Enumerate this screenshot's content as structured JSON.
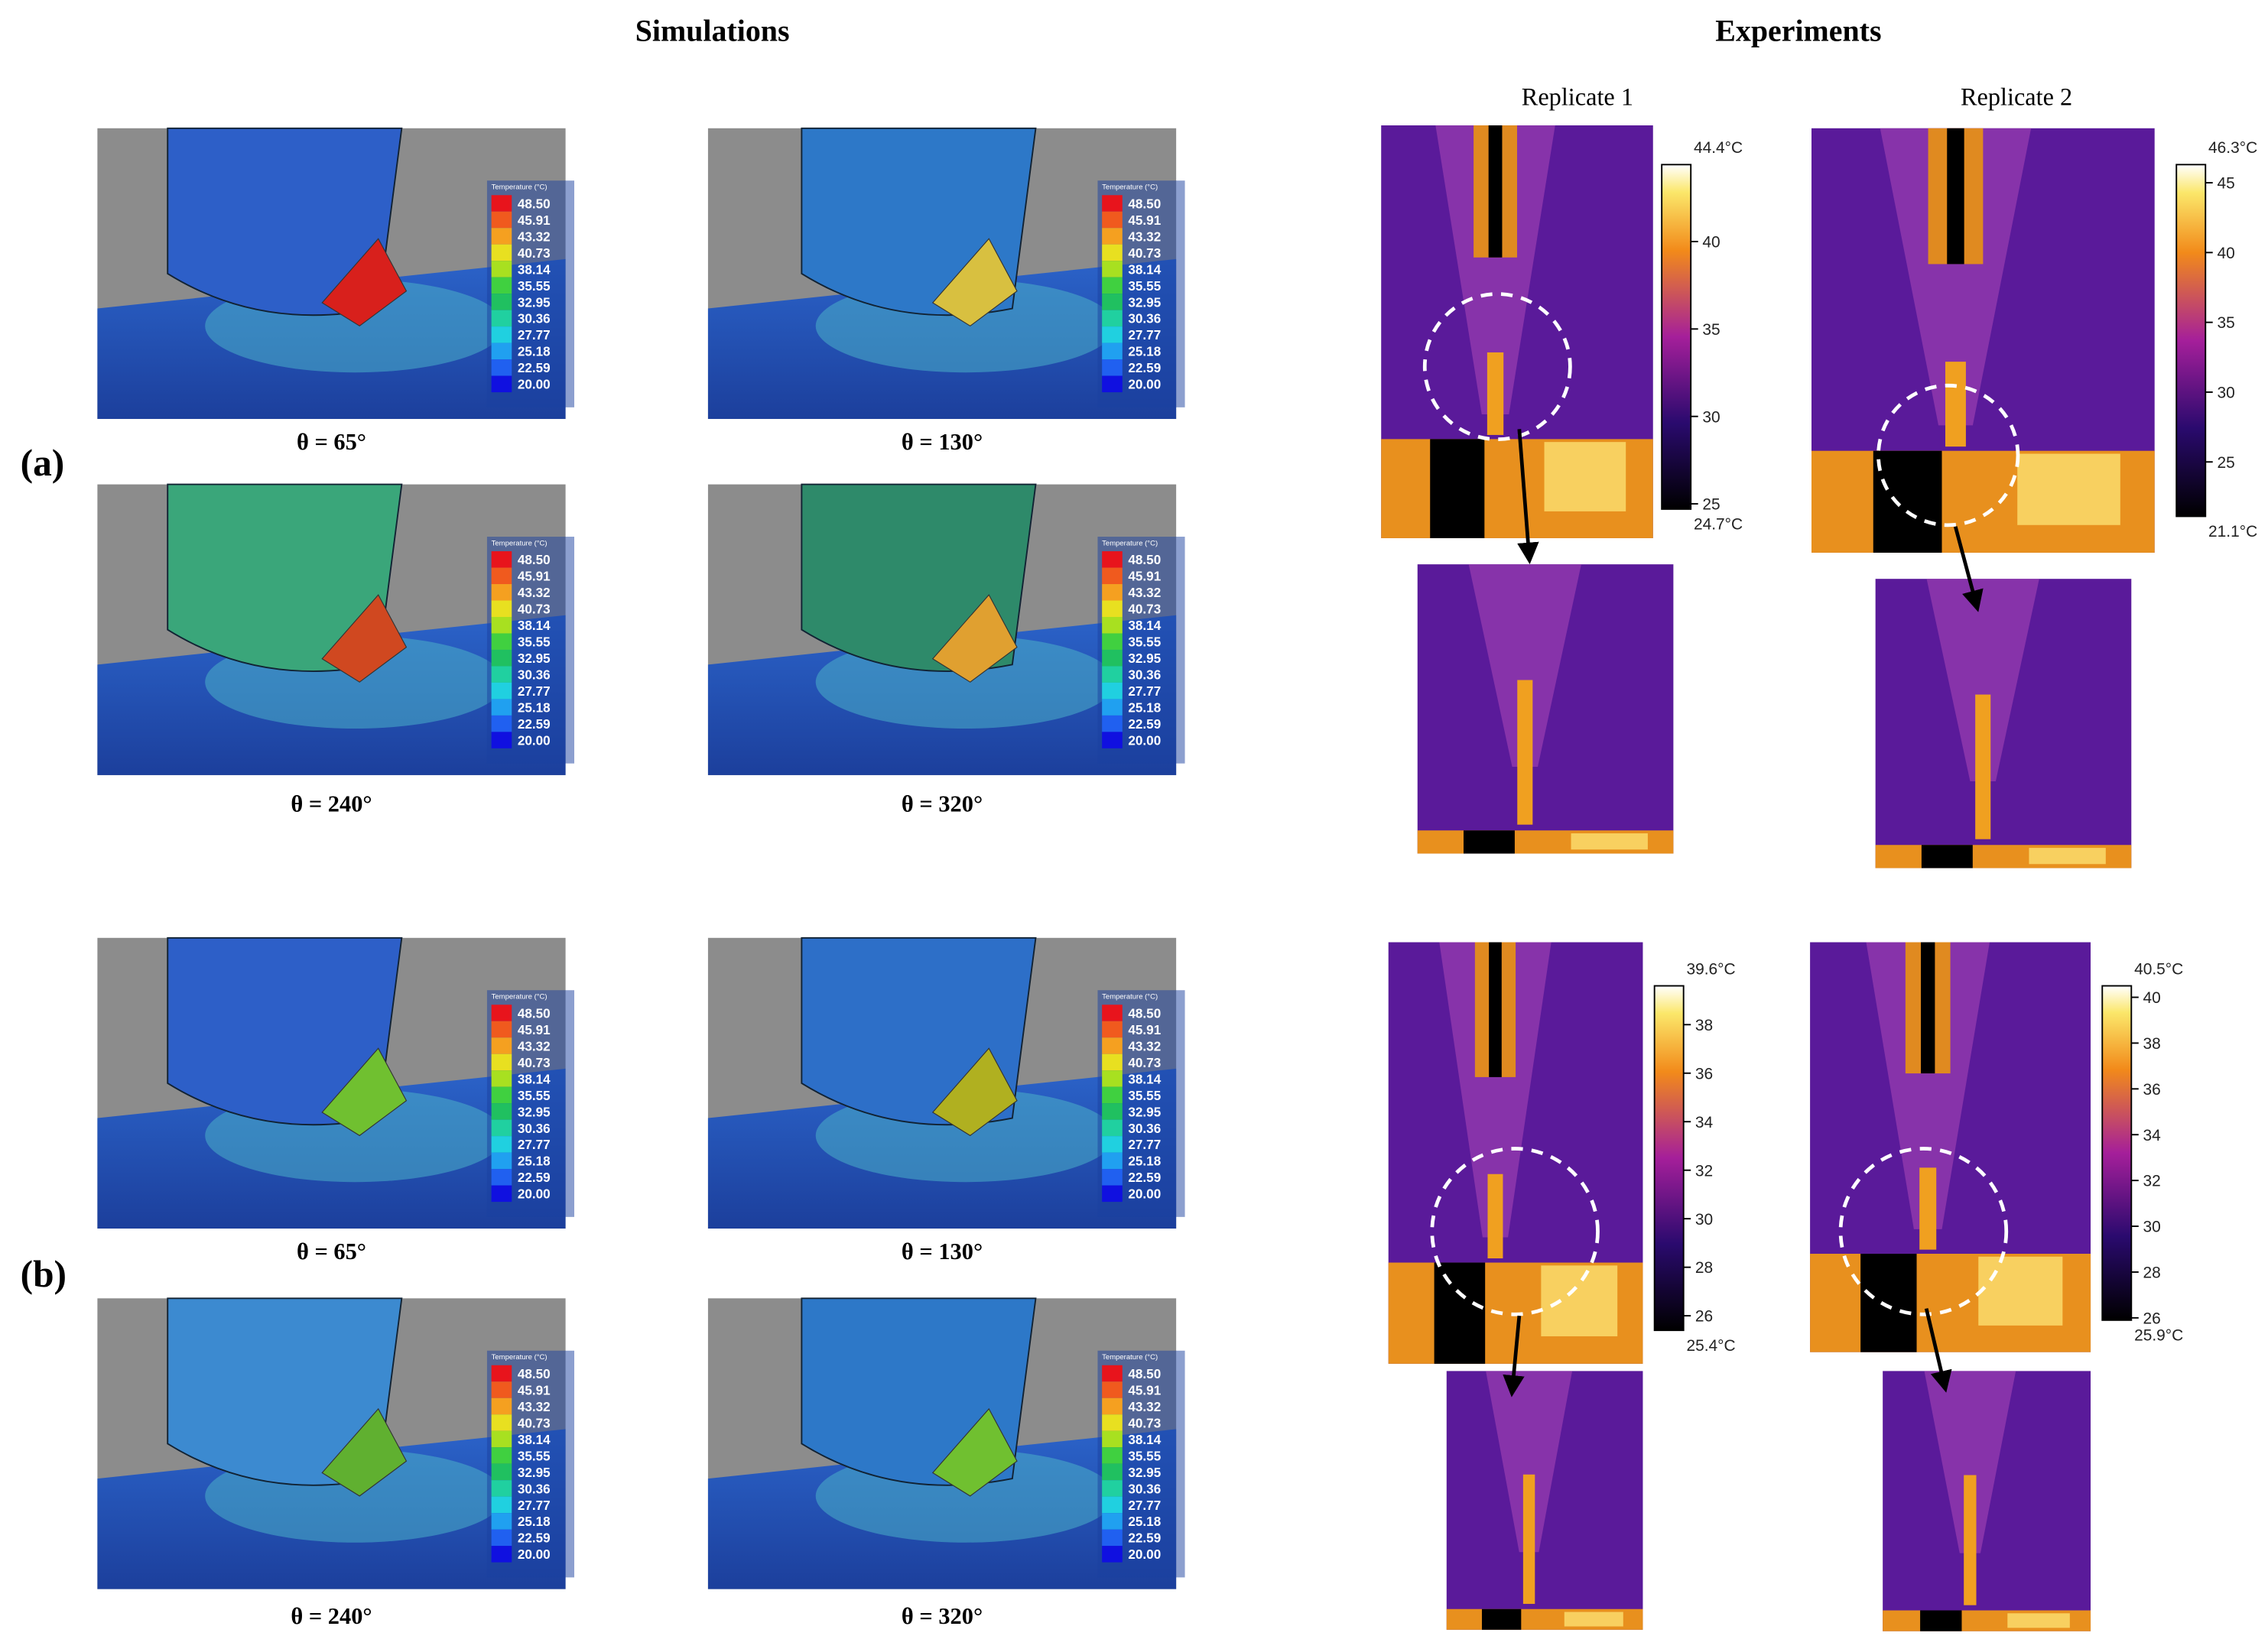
{
  "headers": {
    "simulations": "Simulations",
    "experiments": "Experiments",
    "replicates": [
      "Replicate 1",
      "Replicate 2"
    ]
  },
  "sim_legend": {
    "title": "Temperature (°C)",
    "levels": [
      "48.50",
      "45.91",
      "43.32",
      "40.73",
      "38.14",
      "35.55",
      "32.95",
      "30.36",
      "27.77",
      "25.18",
      "22.59",
      "20.00"
    ]
  },
  "panels": [
    {
      "label": "(a)",
      "angles": [
        "θ = 65°",
        "θ = 130°",
        "θ = 240°",
        "θ = 320°"
      ],
      "experiments": [
        {
          "max": {
            "value": 44.4,
            "label": "44.4°C"
          },
          "min": {
            "value": 24.7,
            "label": "24.7°C"
          },
          "ticks": [
            40,
            35,
            30,
            25
          ]
        },
        {
          "max": {
            "value": 46.3,
            "label": "46.3°C"
          },
          "min": {
            "value": 21.1,
            "label": "21.1°C"
          },
          "ticks": [
            45,
            40,
            35,
            30,
            25
          ]
        }
      ]
    },
    {
      "label": "(b)",
      "angles": [
        "θ = 65°",
        "θ = 130°",
        "θ = 240°",
        "θ = 320°"
      ],
      "experiments": [
        {
          "max": {
            "value": 39.6,
            "label": "39.6°C"
          },
          "min": {
            "value": 25.4,
            "label": "25.4°C"
          },
          "ticks": [
            38,
            36,
            34,
            32,
            30,
            28,
            26
          ]
        },
        {
          "max": {
            "value": 40.5,
            "label": "40.5°C"
          },
          "min": {
            "value": 25.9,
            "label": "25.9°C"
          },
          "ticks": [
            40,
            38,
            36,
            34,
            32,
            30,
            28,
            26
          ]
        }
      ]
    }
  ]
}
